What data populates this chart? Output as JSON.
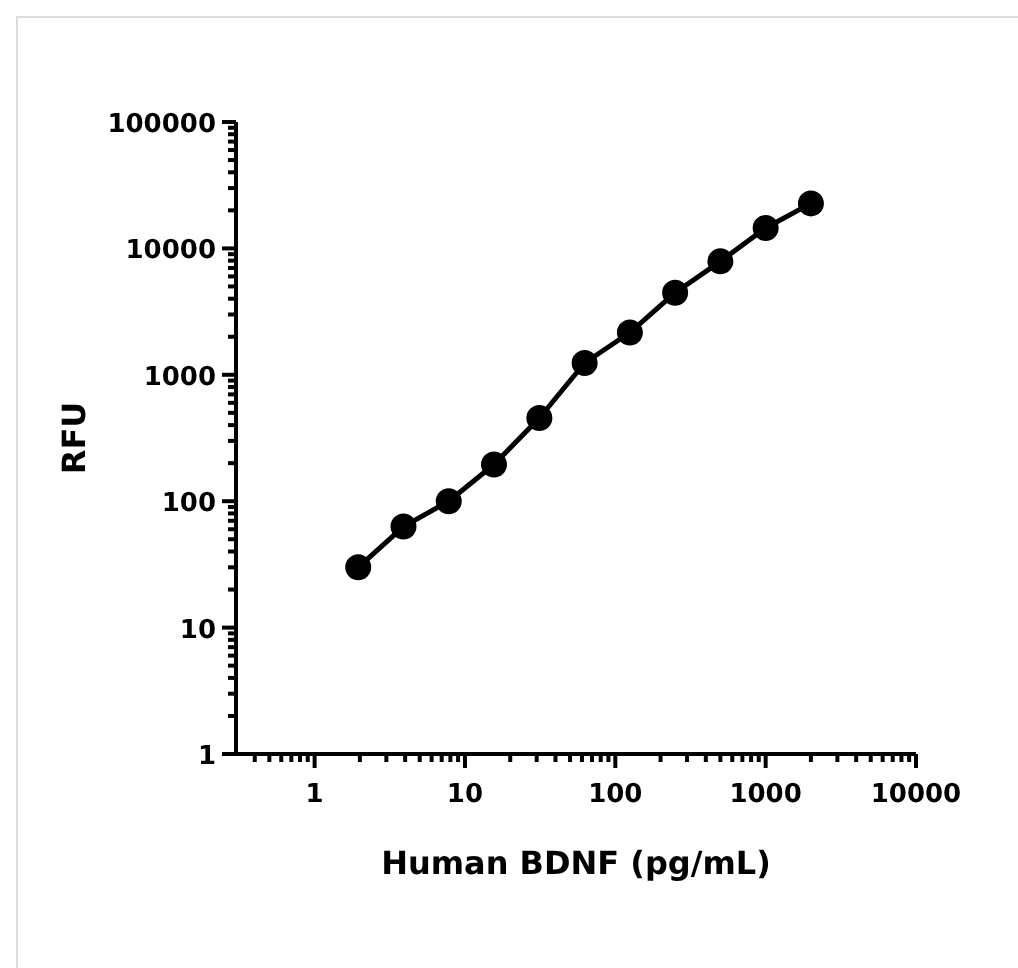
{
  "chart_data": {
    "type": "line",
    "xlabel": "Human BDNF (pg/mL)",
    "ylabel": "RFU",
    "log": "xy",
    "marker": "circle",
    "line_style": "solid",
    "grid": false,
    "legend": false,
    "x": [
      1.95,
      3.9,
      7.8,
      15.6,
      31.25,
      62.5,
      125,
      250,
      500,
      1000,
      2000
    ],
    "series": [
      {
        "color": "#000000",
        "values": [
          30,
          63,
          100,
          195,
          455,
          1240,
          2160,
          4460,
          7900,
          14500,
          22700
        ]
      }
    ],
    "xlim": [
      0.3,
      10000
    ],
    "xticks": [
      {
        "value": 0.4,
        "label": null
      },
      {
        "value": 0.5,
        "label": null
      },
      {
        "value": 0.6,
        "label": null
      },
      {
        "value": 0.7,
        "label": null
      },
      {
        "value": 0.8,
        "label": null
      },
      {
        "value": 0.9,
        "label": null
      },
      1,
      {
        "value": 2,
        "label": null
      },
      {
        "value": 3,
        "label": null
      },
      {
        "value": 4,
        "label": null
      },
      {
        "value": 5,
        "label": null
      },
      {
        "value": 6,
        "label": null
      },
      {
        "value": 7,
        "label": null
      },
      {
        "value": 8,
        "label": null
      },
      {
        "value": 9,
        "label": null
      },
      10,
      {
        "value": 20,
        "label": null
      },
      {
        "value": 30,
        "label": null
      },
      {
        "value": 40,
        "label": null
      },
      {
        "value": 50,
        "label": null
      },
      {
        "value": 60,
        "label": null
      },
      {
        "value": 70,
        "label": null
      },
      {
        "value": 80,
        "label": null
      },
      {
        "value": 90,
        "label": null
      },
      100,
      {
        "value": 200,
        "label": null
      },
      {
        "value": 300,
        "label": null
      },
      {
        "value": 400,
        "label": null
      },
      {
        "value": 500,
        "label": null
      },
      {
        "value": 600,
        "label": null
      },
      {
        "value": 700,
        "label": null
      },
      {
        "value": 800,
        "label": null
      },
      {
        "value": 900,
        "label": null
      },
      1000,
      {
        "value": 2000,
        "label": null
      },
      {
        "value": 3000,
        "label": null
      },
      {
        "value": 4000,
        "label": null
      },
      {
        "value": 5000,
        "label": null
      },
      {
        "value": 6000,
        "label": null
      },
      {
        "value": 7000,
        "label": null
      },
      {
        "value": 8000,
        "label": null
      },
      {
        "value": 9000,
        "label": null
      },
      10000
    ],
    "ylim": [
      1,
      100000
    ],
    "yticks": [
      1,
      {
        "value": 2,
        "label": null
      },
      {
        "value": 3,
        "label": null
      },
      {
        "value": 4,
        "label": null
      },
      {
        "value": 5,
        "label": null
      },
      {
        "value": 6,
        "label": null
      },
      {
        "value": 7,
        "label": null
      },
      {
        "value": 8,
        "label": null
      },
      {
        "value": 9,
        "label": null
      },
      10,
      {
        "value": 20,
        "label": null
      },
      {
        "value": 30,
        "label": null
      },
      {
        "value": 40,
        "label": null
      },
      {
        "value": 50,
        "label": null
      },
      {
        "value": 60,
        "label": null
      },
      {
        "value": 70,
        "label": null
      },
      {
        "value": 80,
        "label": null
      },
      {
        "value": 90,
        "label": null
      },
      100,
      {
        "value": 200,
        "label": null
      },
      {
        "value": 300,
        "label": null
      },
      {
        "value": 400,
        "label": null
      },
      {
        "value": 500,
        "label": null
      },
      {
        "value": 600,
        "label": null
      },
      {
        "value": 700,
        "label": null
      },
      {
        "value": 800,
        "label": null
      },
      {
        "value": 900,
        "label": null
      },
      1000,
      {
        "value": 2000,
        "label": null
      },
      {
        "value": 3000,
        "label": null
      },
      {
        "value": 4000,
        "label": null
      },
      {
        "value": 5000,
        "label": null
      },
      {
        "value": 6000,
        "label": null
      },
      {
        "value": 7000,
        "label": null
      },
      {
        "value": 8000,
        "label": null
      },
      {
        "value": 9000,
        "label": null
      },
      10000,
      {
        "value": 20000,
        "label": null
      },
      {
        "value": 30000,
        "label": null
      },
      {
        "value": 40000,
        "label": null
      },
      {
        "value": 50000,
        "label": null
      },
      {
        "value": 60000,
        "label": null
      },
      {
        "value": 70000,
        "label": null
      },
      {
        "value": 80000,
        "label": null
      },
      {
        "value": 90000,
        "label": null
      },
      100000
    ]
  }
}
